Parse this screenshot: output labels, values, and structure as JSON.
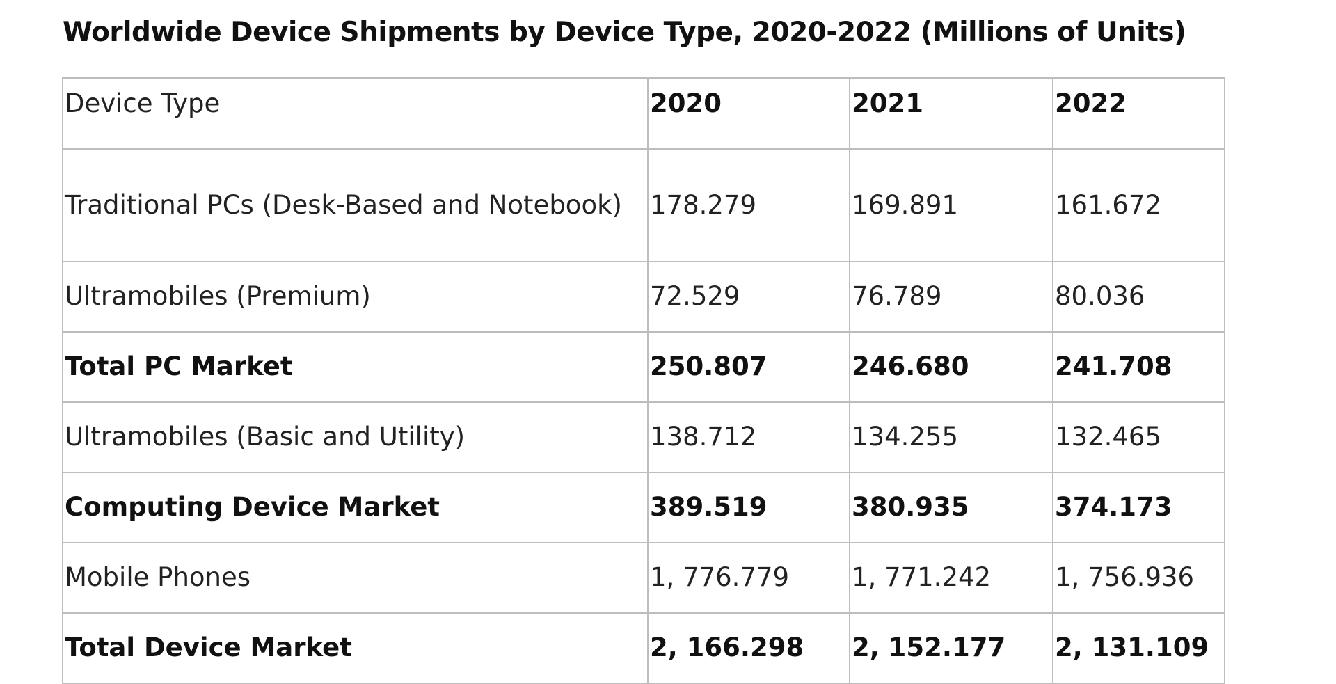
{
  "chart_data": {
    "type": "table",
    "title": "Worldwide Device Shipments by Device Type, 2020-2022 (Millions of Units)",
    "columns": [
      "Device Type",
      "2020",
      "2021",
      "2022"
    ],
    "rows": [
      {
        "label": "Traditional PCs (Desk-Based and Notebook)",
        "values": [
          "178.279",
          "169.891",
          "161.672"
        ],
        "bold": false
      },
      {
        "label": "Ultramobiles (Premium)",
        "values": [
          "72.529",
          "76.789",
          "80.036"
        ],
        "bold": false
      },
      {
        "label": "Total PC Market",
        "values": [
          "250.807",
          "246.680",
          "241.708"
        ],
        "bold": true
      },
      {
        "label": "Ultramobiles (Basic and Utility)",
        "values": [
          "138.712",
          "134.255",
          "132.465"
        ],
        "bold": false
      },
      {
        "label": "Computing Device Market",
        "values": [
          "389.519",
          "380.935",
          "374.173"
        ],
        "bold": true
      },
      {
        "label": "Mobile Phones",
        "values": [
          "1, 776.779",
          "1, 771.242",
          "1, 756.936"
        ],
        "bold": false
      },
      {
        "label": "Total Device Market",
        "values": [
          "2, 166.298",
          "2, 152.177",
          "2, 131.109"
        ],
        "bold": true
      }
    ]
  }
}
